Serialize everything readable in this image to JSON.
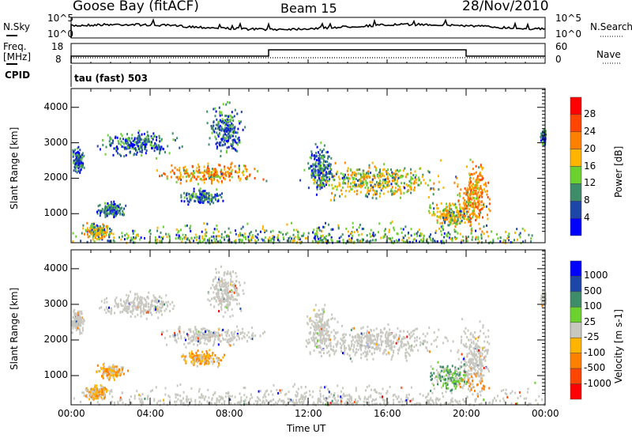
{
  "header": {
    "title": "Goose Bay (fitACF)",
    "beam": "Beam 15",
    "date": "28/Nov/2010"
  },
  "nsky": {
    "label": "N.Sky",
    "right_label": "N.Search",
    "ticks": [
      "10^5",
      "10^0"
    ]
  },
  "freq": {
    "label1": "Freq.",
    "label2": "[MHz]",
    "ticks": [
      "18",
      "8"
    ],
    "right_label": "Nave",
    "right_ticks": [
      "60",
      "0"
    ],
    "change_hours": [
      10,
      20
    ],
    "freq_low": 10.5,
    "freq_high": 15.5
  },
  "cpid": {
    "label": "CPID",
    "value": "tau (fast) 503"
  },
  "chart_data": [
    {
      "type": "heatmap",
      "name": "power",
      "ylabel": "Slant Range [km]",
      "xlabel": "Time UT",
      "xlim": [
        0,
        24
      ],
      "ylim": [
        180,
        4530
      ],
      "xticks": [
        "00:00",
        "04:00",
        "08:00",
        "12:00",
        "16:00",
        "20:00",
        "00:00"
      ],
      "yticks": [
        "1000",
        "2000",
        "3000",
        "4000"
      ],
      "colorbar": {
        "label": "Power [dB]",
        "levels": [
          "28",
          "24",
          "20",
          "16",
          "12",
          "8",
          "4"
        ],
        "colors": [
          "#ff0000",
          "#ff4500",
          "#ff7f00",
          "#ffb400",
          "#6cd12f",
          "#3f8c6a",
          "#1e46a8",
          "#0000ff"
        ]
      },
      "blobs": [
        [
          12,
          350,
          12,
          80,
          4
        ],
        [
          0.3,
          2550,
          0.25,
          250,
          3
        ],
        [
          1.3,
          550,
          0.5,
          150,
          5
        ],
        [
          2,
          1150,
          0.5,
          150,
          3
        ],
        [
          3.4,
          3000,
          1.4,
          250,
          3
        ],
        [
          7,
          2150,
          1.8,
          200,
          6
        ],
        [
          6.6,
          1500,
          0.7,
          150,
          3
        ],
        [
          7.8,
          3400,
          0.6,
          500,
          3
        ],
        [
          12.6,
          2300,
          0.5,
          500,
          3
        ],
        [
          15.5,
          1950,
          2.5,
          350,
          5
        ],
        [
          19.2,
          1000,
          0.8,
          250,
          5
        ],
        [
          20.4,
          1500,
          0.6,
          700,
          6
        ],
        [
          23.9,
          3200,
          0.1,
          150,
          3
        ]
      ]
    },
    {
      "type": "heatmap",
      "name": "velocity",
      "ylabel": "Slant Range [km]",
      "xlabel": "Time UT",
      "xlim": [
        0,
        24
      ],
      "ylim": [
        180,
        4530
      ],
      "xticks": [
        "00:00",
        "04:00",
        "08:00",
        "12:00",
        "16:00",
        "20:00",
        "00:00"
      ],
      "yticks": [
        "1000",
        "2000",
        "3000",
        "4000"
      ],
      "colorbar": {
        "label": "Velocity [m s-1]",
        "levels": [
          "1000",
          "500",
          "100",
          "25",
          "-25",
          "-100",
          "-500",
          "-1000"
        ],
        "colors": [
          "#0000ff",
          "#1e46a8",
          "#3f8c6a",
          "#6cd12f",
          "#c8c8c0",
          "#ffb400",
          "#ff7f00",
          "#ff4500",
          "#ff0000"
        ]
      }
    }
  ]
}
